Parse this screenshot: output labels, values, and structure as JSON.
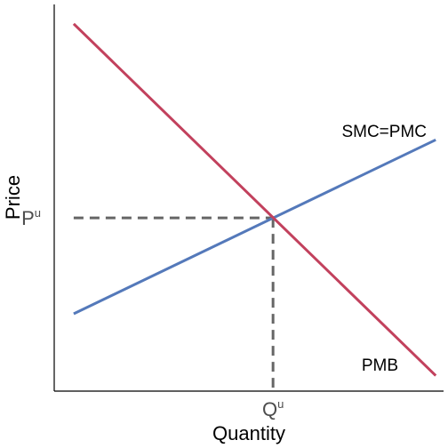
{
  "chart_data": {
    "type": "line",
    "xlabel": "Quantity",
    "ylabel": "Price",
    "xlim": [
      0,
      10
    ],
    "ylim": [
      0,
      10
    ],
    "grid": false,
    "series": [
      {
        "name": "SMC=PMC",
        "color": "#5479ba",
        "x": [
          0.5,
          9.8
        ],
        "y": [
          2.0,
          6.5
        ]
      },
      {
        "name": "PMB",
        "color": "#c2415d",
        "x": [
          0.5,
          9.8
        ],
        "y": [
          9.5,
          0.4
        ]
      }
    ],
    "equilibrium": {
      "x": 5.62,
      "y": 4.48
    },
    "equilibrium_line_color": "#666666",
    "ticks": {
      "x": {
        "base": "Q",
        "sup": "u"
      },
      "y": {
        "base": "P",
        "sup": "u"
      }
    }
  }
}
